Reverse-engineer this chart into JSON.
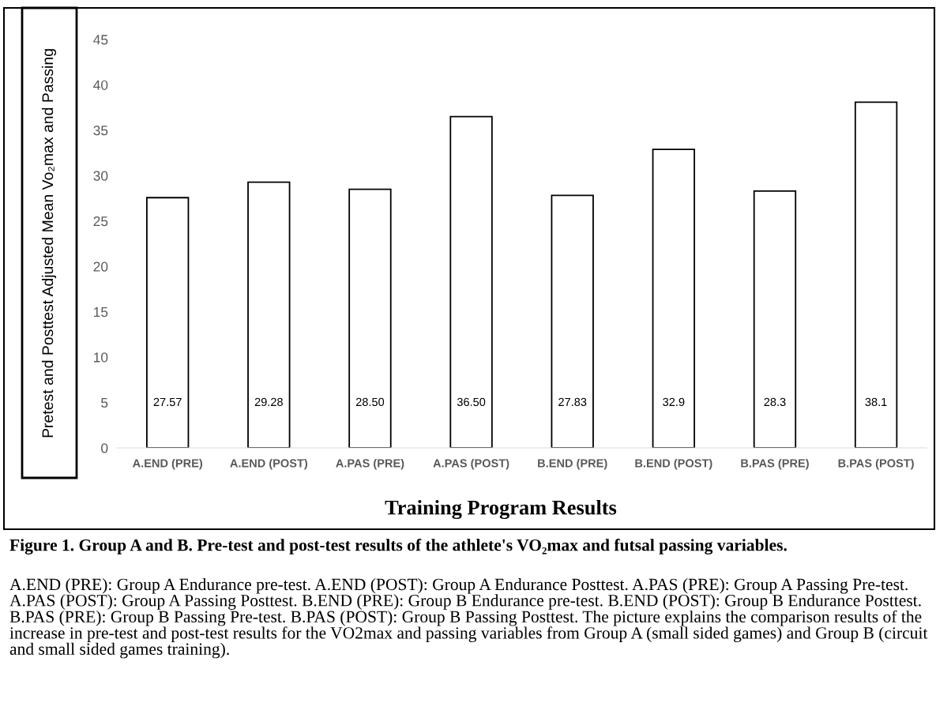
{
  "chart_data": {
    "type": "bar",
    "title": "Training Program Results",
    "ylabel": "Pretest and Posttest Adjusted Mean Vo₂max and Passing",
    "categories": [
      "A.END (PRE)",
      "A.END (POST)",
      "A.PAS (PRE)",
      "A.PAS (POST)",
      "B.END (PRE)",
      "B.END (POST)",
      "B.PAS (PRE)",
      "B.PAS (POST)"
    ],
    "values": [
      27.57,
      29.28,
      28.5,
      36.5,
      27.83,
      32.9,
      28.3,
      38.1
    ],
    "value_labels": [
      "27.57",
      "29.28",
      "28.50",
      "36.50",
      "27.83",
      "32.9",
      "28.3",
      "38.1"
    ],
    "color": "#ffffff",
    "ylim": [
      0,
      45
    ],
    "yticks": [
      0,
      5,
      10,
      15,
      20,
      25,
      30,
      35,
      40,
      45
    ],
    "grid": false,
    "annotations": [
      "Figure 1. Group A and B. Pre-test and post-test results of the athlete's VO₂max and futsal passing variables.",
      "A.END (PRE): Group A Endurance pre-test. A.END (POST): Group A Endurance Posttest. A.PAS (PRE): Group A Passing Pre-test. A.PAS (POST): Group A Passing Posttest. B.END (PRE): Group B Endurance pre-test. B.END (POST): Group B Endurance Posttest. B.PAS (PRE): Group B Passing Pre-test. B.PAS (POST): Group B Passing Posttest. The picture explains the comparison results of the increase in pre-test and post-test results for the VO2max and passing variables from Group A (small sided games) and Group B (circuit and small sided games training)."
    ]
  }
}
